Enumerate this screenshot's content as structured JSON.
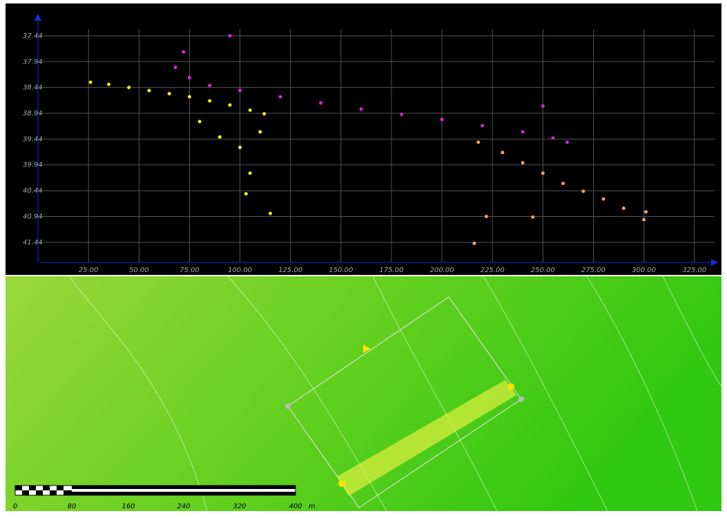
{
  "chart_data": {
    "type": "scatter",
    "xlim": [
      1,
      335
    ],
    "ylim": [
      37.04,
      41.83
    ],
    "y_inverted": true,
    "grid": true,
    "xticks": [
      {
        "value": 25,
        "label": "25.00"
      },
      {
        "value": 50,
        "label": "50.00"
      },
      {
        "value": 75,
        "label": "75.00"
      },
      {
        "value": 100,
        "label": "100.00"
      },
      {
        "value": 125,
        "label": "125.00"
      },
      {
        "value": 150,
        "label": "150.00"
      },
      {
        "value": 175,
        "label": "175.00"
      },
      {
        "value": 200,
        "label": "200.00"
      },
      {
        "value": 225,
        "label": "225.00"
      },
      {
        "value": 250,
        "label": "250.00"
      },
      {
        "value": 275,
        "label": "275.00"
      },
      {
        "value": 300,
        "label": "300.00"
      },
      {
        "value": 325,
        "label": "325.00"
      }
    ],
    "yticks": [
      37.44,
      37.94,
      38.44,
      38.94,
      39.44,
      39.94,
      40.44,
      40.94,
      41.44
    ],
    "series": [
      {
        "color": "#f0f020",
        "x": [
          26,
          35,
          45,
          55,
          65,
          75,
          85,
          95,
          105,
          112,
          80,
          100,
          105,
          90,
          110,
          115,
          103
        ],
        "values": [
          38.34,
          38.38,
          38.44,
          38.5,
          38.56,
          38.62,
          38.7,
          38.78,
          38.88,
          38.95,
          39.1,
          39.6,
          40.1,
          39.4,
          39.3,
          40.88,
          40.5
        ]
      },
      {
        "color": "#e020e0",
        "x": [
          68,
          75,
          85,
          100,
          120,
          140,
          160,
          180,
          200,
          220,
          240,
          255,
          262,
          72,
          95,
          250
        ],
        "values": [
          38.05,
          38.25,
          38.4,
          38.5,
          38.62,
          38.74,
          38.86,
          38.96,
          39.06,
          39.18,
          39.3,
          39.42,
          39.5,
          37.75,
          37.44,
          38.8
        ]
      },
      {
        "color": "#f0a060",
        "x": [
          218,
          230,
          240,
          250,
          260,
          270,
          280,
          290,
          300,
          301,
          222,
          245,
          216
        ],
        "values": [
          39.5,
          39.7,
          39.9,
          40.1,
          40.3,
          40.45,
          40.6,
          40.78,
          41.0,
          40.85,
          40.94,
          40.95,
          41.46
        ]
      }
    ]
  },
  "map": {
    "scale_labels": [
      "0",
      "80",
      "160",
      "240",
      "320",
      "400"
    ],
    "unit": "m"
  }
}
